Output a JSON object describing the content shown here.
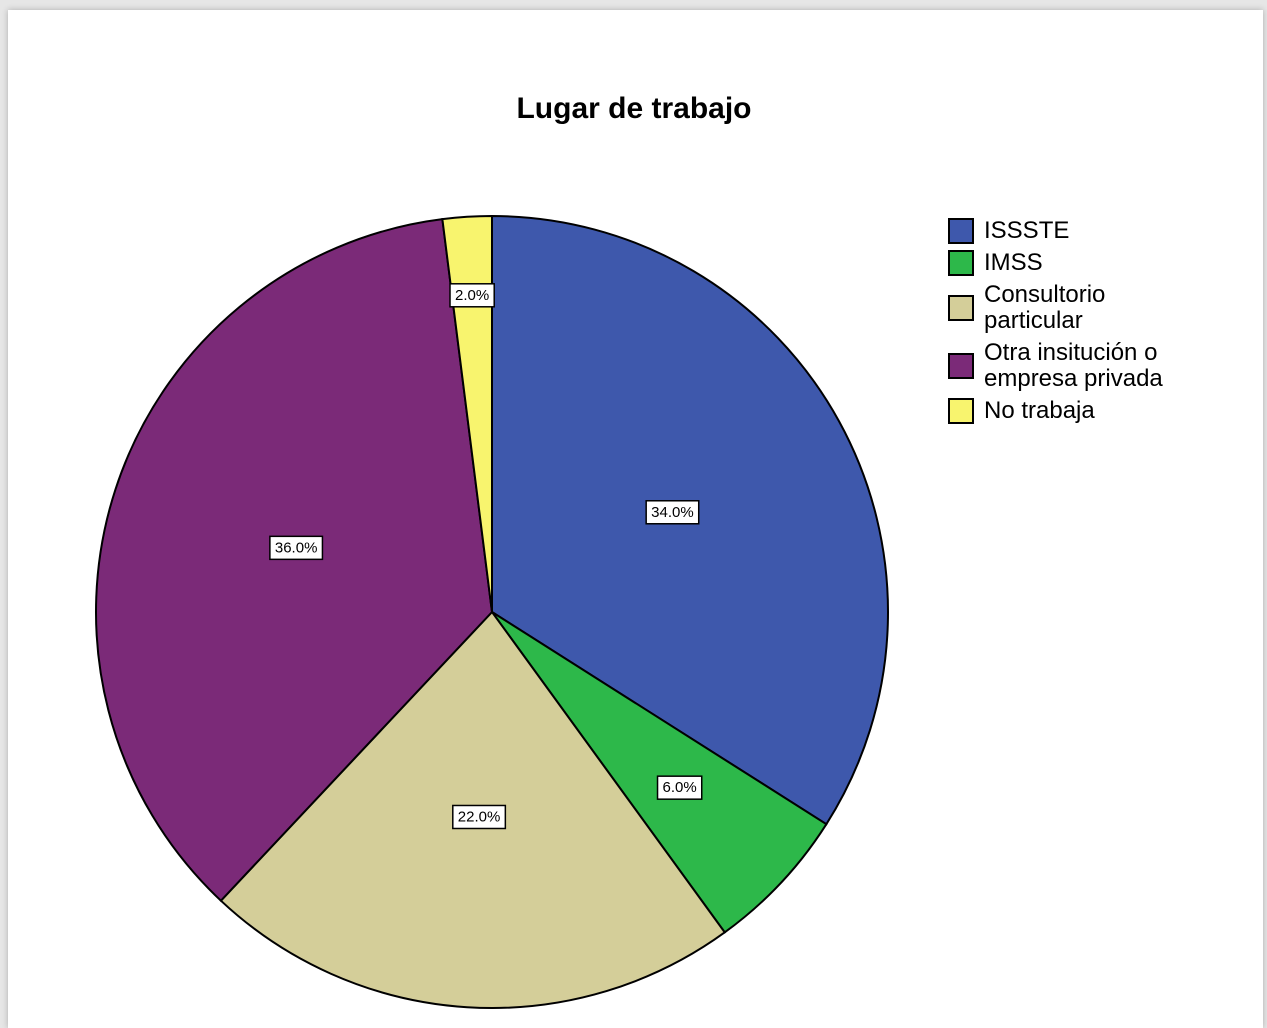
{
  "chart_data": {
    "type": "pie",
    "title": "Lugar de trabajo",
    "categories": [
      "ISSSTE",
      "IMSS",
      "Consultorio particular",
      "Otra insitución o empresa privada",
      "No trabaja"
    ],
    "values": [
      34,
      6,
      22,
      36,
      2
    ],
    "value_labels": [
      "34.0%",
      "6.0%",
      "22.0%",
      "36.0%",
      "2.0%"
    ],
    "colors": [
      "#3e58ac",
      "#2db84a",
      "#d4ce99",
      "#7b2a78",
      "#f8f46e"
    ],
    "legend": "right"
  }
}
